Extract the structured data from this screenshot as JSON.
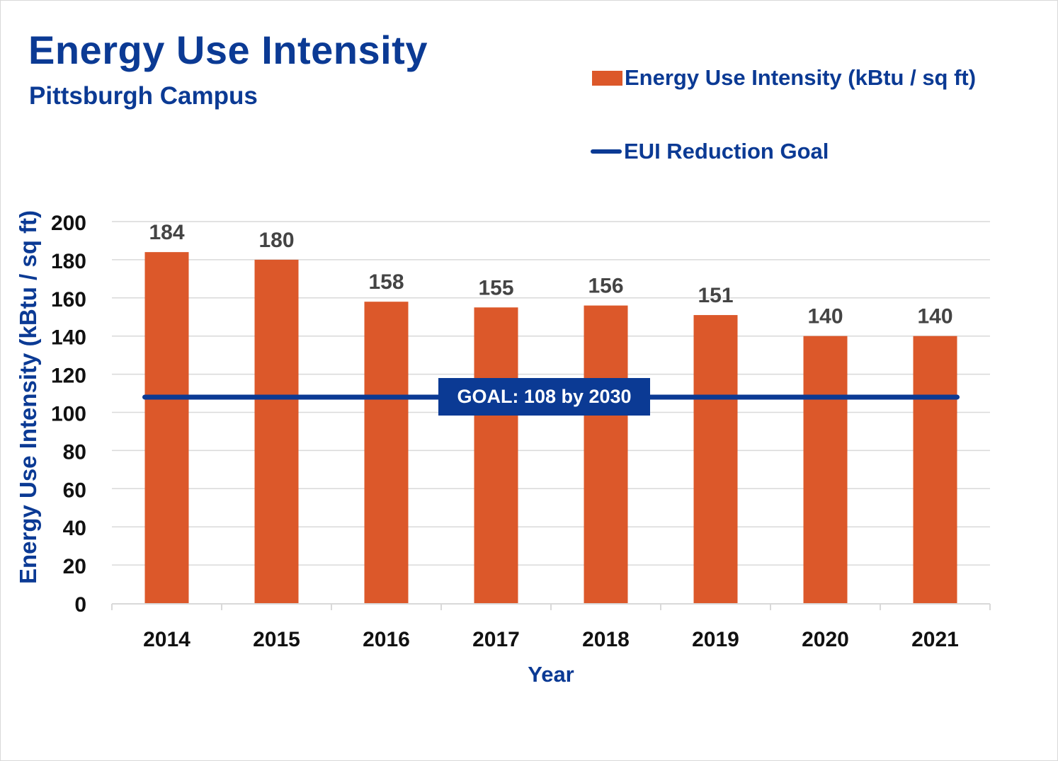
{
  "colors": {
    "bar": "#dc582a",
    "goal_line": "#0b3a94",
    "title": "#0b3a94",
    "tick_text": "#111111",
    "data_label": "#444444",
    "grid": "#d9d9d9"
  },
  "chart_data": {
    "type": "bar",
    "title": "Energy Use Intensity",
    "subtitle": "Pittsburgh Campus",
    "xlabel": "Year",
    "ylabel": "Energy Use Intensity (kBtu / sq ft)",
    "categories": [
      "2014",
      "2015",
      "2016",
      "2017",
      "2018",
      "2019",
      "2020",
      "2021"
    ],
    "series": [
      {
        "name": "Energy Use Intensity (kBtu / sq ft)",
        "type": "bar",
        "values": [
          184,
          180,
          158,
          155,
          156,
          151,
          140,
          140
        ],
        "data_labels": [
          "184",
          "180",
          "158",
          "155",
          "156",
          "151",
          "140",
          "140"
        ]
      },
      {
        "name": "EUI Reduction Goal",
        "type": "line",
        "values": [
          108,
          108,
          108,
          108,
          108,
          108,
          108,
          108
        ]
      }
    ],
    "ylim": [
      0,
      200
    ],
    "yticks": [
      "0",
      "20",
      "40",
      "60",
      "80",
      "100",
      "120",
      "140",
      "160",
      "180",
      "200"
    ],
    "grid": true,
    "legend_position": "top-right",
    "annotation": "GOAL: 108 by 2030"
  }
}
